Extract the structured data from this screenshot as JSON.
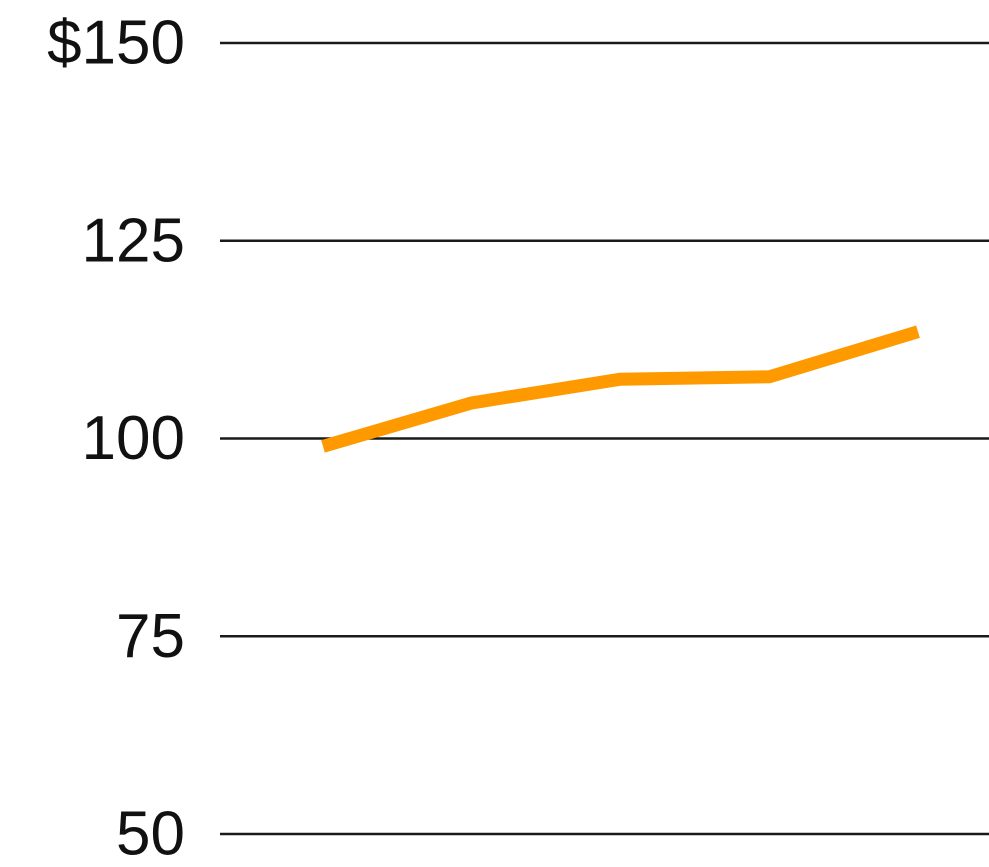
{
  "chart_data": {
    "type": "line",
    "title": "",
    "xlabel": "",
    "ylabel": "",
    "ylim": [
      50,
      150
    ],
    "y_ticks": [
      150,
      125,
      100,
      75,
      50
    ],
    "y_tick_labels": [
      "$150",
      "125",
      "100",
      "75",
      "50"
    ],
    "grid": true,
    "legend": "none",
    "x": [
      1,
      2,
      3,
      4,
      5
    ],
    "series": [
      {
        "values": [
          99,
          104.5,
          107.5,
          107.8,
          113.5
        ],
        "color": "#ff9900"
      }
    ]
  }
}
